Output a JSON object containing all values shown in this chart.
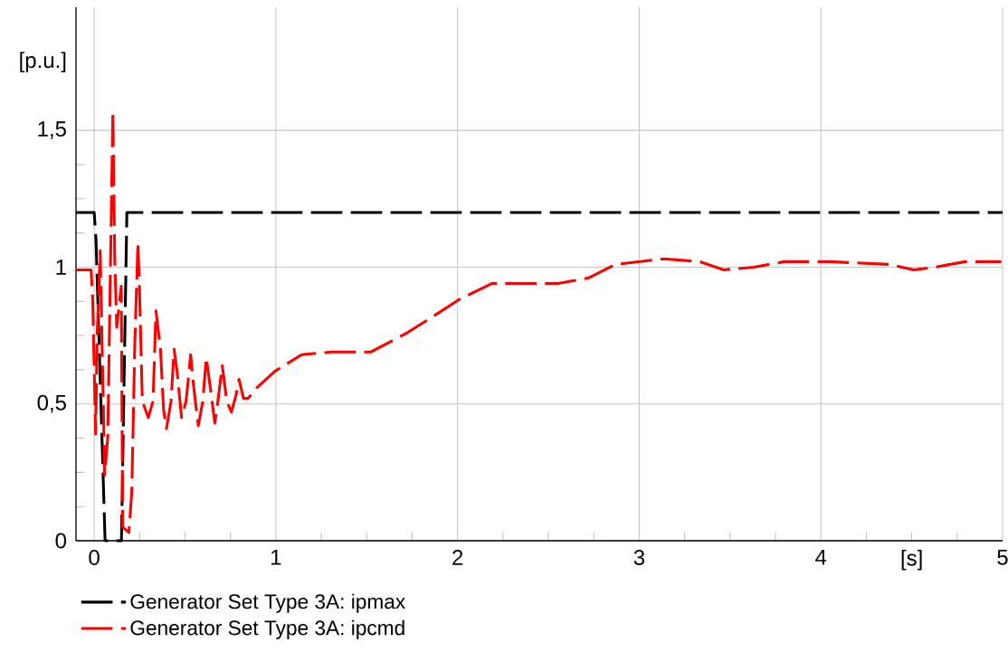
{
  "chart_data": {
    "type": "line",
    "xlabel": "[s]",
    "ylabel": "[p.u.]",
    "xlim": [
      -0.1,
      5
    ],
    "ylim": [
      0,
      1.95
    ],
    "xticks": [
      0,
      1,
      2,
      3,
      4,
      5
    ],
    "yticks": [
      0,
      {
        "value": 0.5,
        "label": "0,5"
      },
      1,
      {
        "value": 1.5,
        "label": "1,5"
      }
    ],
    "grid": true,
    "legend": "bottom",
    "line_style": "dashed",
    "series": [
      {
        "name": "Generator Set Type 3A: ipmax",
        "color": "#000000",
        "x": [
          -0.1,
          0,
          0.01,
          0.06,
          0.15,
          0.18,
          5
        ],
        "values": [
          1.2,
          1.2,
          1.1,
          0,
          0,
          1.2,
          1.2
        ]
      },
      {
        "name": "Generator Set Type 3A: ipcmd",
        "color": "#ff0000",
        "x": [
          -0.1,
          -0.017,
          -0.008,
          0.008,
          0.017,
          0.033,
          0.058,
          0.075,
          0.103,
          0.113,
          0.124,
          0.149,
          0.157,
          0.191,
          0.207,
          0.224,
          0.241,
          0.249,
          0.265,
          0.298,
          0.324,
          0.34,
          0.365,
          0.382,
          0.398,
          0.423,
          0.44,
          0.456,
          0.481,
          0.506,
          0.531,
          0.548,
          0.573,
          0.598,
          0.617,
          0.639,
          0.664,
          0.681,
          0.705,
          0.73,
          0.755,
          0.78,
          0.797,
          0.822,
          0.847,
          0.896,
          0.996,
          1.142,
          1.308,
          1.524,
          1.723,
          1.889,
          2.005,
          2.188,
          2.387,
          2.553,
          2.636,
          2.719,
          2.869,
          3.134,
          3.334,
          3.466,
          3.632,
          3.798,
          4.047,
          4.379,
          4.512,
          4.628,
          4.794,
          4.993
        ],
        "values": [
          0.99,
          0.99,
          0.88,
          0.39,
          0.76,
          1.06,
          0.24,
          0.38,
          1.57,
          1.04,
          0.78,
          0.93,
          0.05,
          0.03,
          0.18,
          0.73,
          1.09,
          0.93,
          0.51,
          0.45,
          0.51,
          0.84,
          0.7,
          0.48,
          0.41,
          0.51,
          0.7,
          0.62,
          0.45,
          0.51,
          0.68,
          0.56,
          0.42,
          0.51,
          0.67,
          0.56,
          0.43,
          0.51,
          0.64,
          0.51,
          0.47,
          0.53,
          0.59,
          0.52,
          0.52,
          0.56,
          0.62,
          0.68,
          0.69,
          0.69,
          0.76,
          0.83,
          0.88,
          0.94,
          0.94,
          0.94,
          0.95,
          0.96,
          1.01,
          1.03,
          1.02,
          0.99,
          1.0,
          1.02,
          1.02,
          1.01,
          0.99,
          1.0,
          1.02,
          1.02
        ]
      }
    ]
  }
}
